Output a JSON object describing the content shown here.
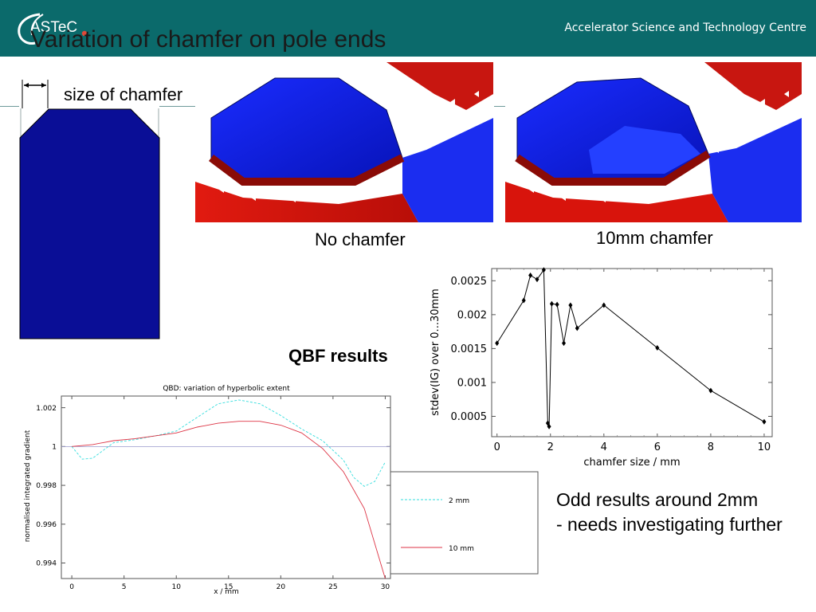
{
  "header": {
    "logo_text": "ASTeC",
    "org_name": "Accelerator Science and Technology Centre",
    "colors": {
      "band": "#0b6a6b",
      "logo_dot": "#e0493a"
    }
  },
  "slide": {
    "title": "Variation of chamfer on pole ends",
    "chamfer_label": "size of chamfer",
    "pole_color": "#0a0e96",
    "captions": {
      "no_chamfer": "No chamfer",
      "ten_mm": "10mm chamfer"
    },
    "qbf_title": "QBF results",
    "note_line1": "Odd results around 2mm",
    "note_line2": "- needs investigating further"
  },
  "images": [
    {
      "name": "no-chamfer-render",
      "description_icon": "magnet-pole-no-chamfer"
    },
    {
      "name": "ten-mm-chamfer-render",
      "description_icon": "magnet-pole-10mm-chamfer"
    }
  ],
  "chart_data": [
    {
      "type": "line",
      "title": "QBD: variation of hyperbolic extent",
      "xlabel": "x / mm",
      "ylabel": "normalised integrated gradient",
      "xlim": [
        -1,
        30.5
      ],
      "ylim": [
        0.9932,
        1.0026
      ],
      "xticks": [
        "0",
        "5",
        "10",
        "15",
        "20",
        "25",
        "30"
      ],
      "yticks": [
        "0.994",
        "0.996",
        "0.998",
        "1",
        "1.002"
      ],
      "reference_line": 1.0,
      "legend": {
        "placement": "outside-right",
        "entries": [
          "2 mm",
          "10 mm"
        ]
      },
      "series": [
        {
          "name": "2 mm",
          "color": "#33dddd",
          "dashed": true,
          "x": [
            0,
            1,
            2,
            4,
            6,
            8,
            10,
            12,
            14,
            16,
            18,
            20,
            22,
            24,
            26,
            27,
            28,
            29,
            30
          ],
          "y": [
            1.0,
            0.99935,
            0.9994,
            1.0002,
            1.00035,
            1.00055,
            1.0008,
            1.0015,
            1.0022,
            1.0024,
            1.0022,
            1.0016,
            1.0009,
            1.0003,
            0.9993,
            0.9984,
            0.99795,
            0.9982,
            0.9992
          ]
        },
        {
          "name": "10 mm",
          "color": "#dd3344",
          "dashed": false,
          "x": [
            0,
            2,
            4,
            6,
            8,
            10,
            12,
            14,
            16,
            18,
            20,
            22,
            24,
            26,
            28,
            30
          ],
          "y": [
            1.0,
            1.0001,
            1.0003,
            1.0004,
            1.00055,
            1.0007,
            1.001,
            1.0012,
            1.0013,
            1.0013,
            1.0011,
            1.0007,
            0.9999,
            0.9987,
            0.9968,
            0.9932
          ]
        }
      ]
    },
    {
      "type": "line",
      "xlabel": "chamfer size / mm",
      "ylabel": "stdev(IG) over 0...30mm",
      "xlim": [
        -0.2,
        10.3
      ],
      "ylim": [
        0.0002,
        0.00268
      ],
      "xticks": [
        "0",
        "2",
        "4",
        "6",
        "8",
        "10"
      ],
      "yticks": [
        "0.0005",
        "0.001",
        "0.0015",
        "0.002",
        "0.0025"
      ],
      "series": [
        {
          "color": "#000000",
          "x": [
            0,
            1,
            1.25,
            1.5,
            1.75,
            1.9,
            1.95,
            2.05,
            2.25,
            2.5,
            2.75,
            3,
            4,
            6,
            8,
            10
          ],
          "y": [
            0.00158,
            0.00221,
            0.00258,
            0.00252,
            0.00266,
            0.0004,
            0.00035,
            0.00216,
            0.00215,
            0.00158,
            0.00214,
            0.0018,
            0.00214,
            0.00151,
            0.00088,
            0.00042
          ]
        }
      ]
    }
  ]
}
